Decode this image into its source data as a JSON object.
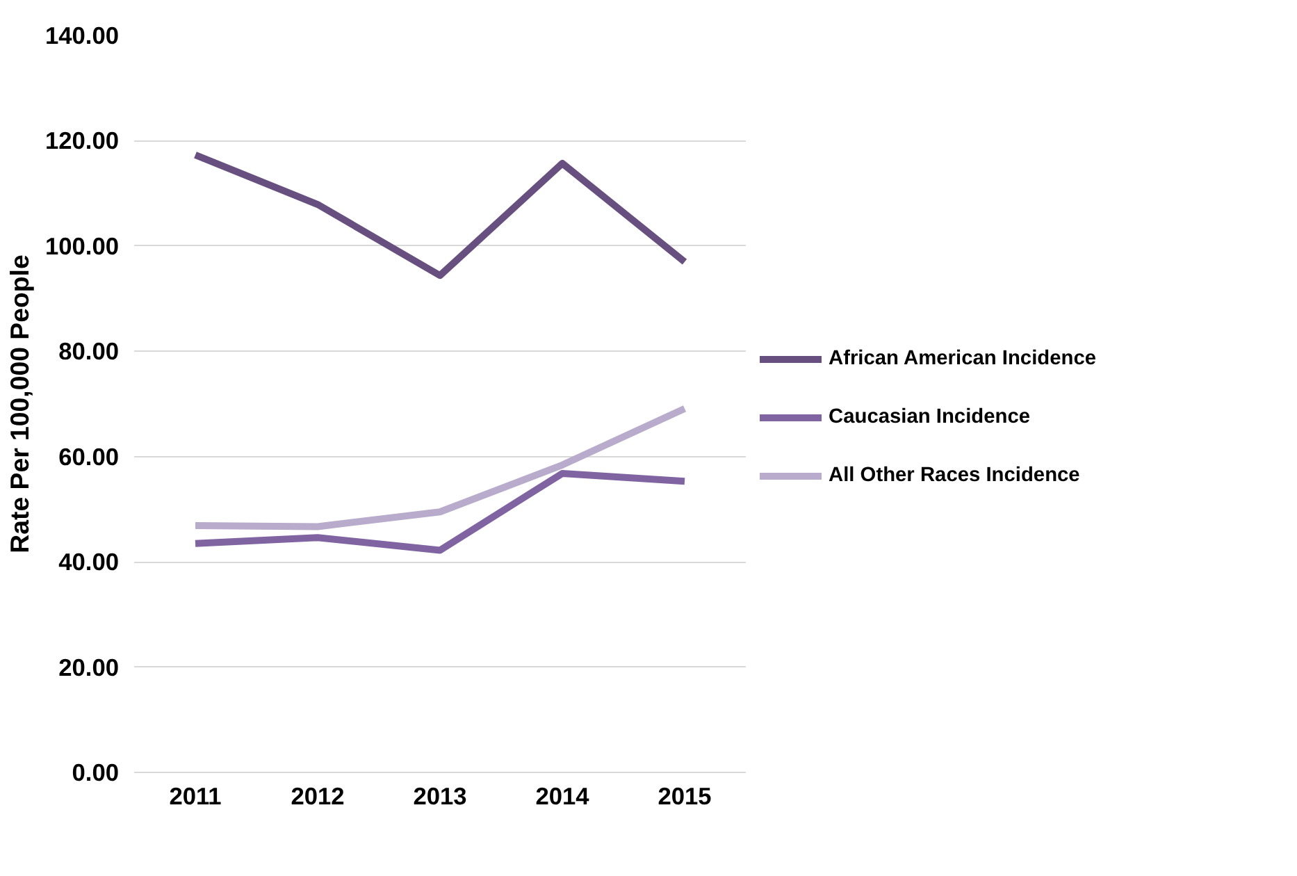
{
  "chart_data": {
    "type": "line",
    "ylabel": "Rate Per 100,000 People",
    "categories": [
      "2011",
      "2012",
      "2013",
      "2014",
      "2015"
    ],
    "series": [
      {
        "name": "African American Incidence",
        "color": "#674f7f",
        "values": [
          117.3,
          107.9,
          94.4,
          115.7,
          97.0
        ]
      },
      {
        "name": "Caucasian Incidence",
        "color": "#8064a2",
        "values": [
          43.5,
          44.6,
          42.2,
          56.8,
          55.3
        ]
      },
      {
        "name": "All Other Races Incidence",
        "color": "#b8abcb",
        "values": [
          46.9,
          46.7,
          49.5,
          58.4,
          69.1
        ]
      }
    ],
    "ylim": [
      0,
      140
    ],
    "yticks": [
      {
        "value": 0,
        "label": "0.00"
      },
      {
        "value": 20,
        "label": "20.00"
      },
      {
        "value": 40,
        "label": "40.00"
      },
      {
        "value": 60,
        "label": "60.00"
      },
      {
        "value": 80,
        "label": "80.00"
      },
      {
        "value": 100,
        "label": "100.00"
      },
      {
        "value": 120,
        "label": "120.00"
      },
      {
        "value": 140,
        "label": "140.00"
      }
    ],
    "grid": "y",
    "legend": "right",
    "marker": "none",
    "line_style": "solid"
  }
}
